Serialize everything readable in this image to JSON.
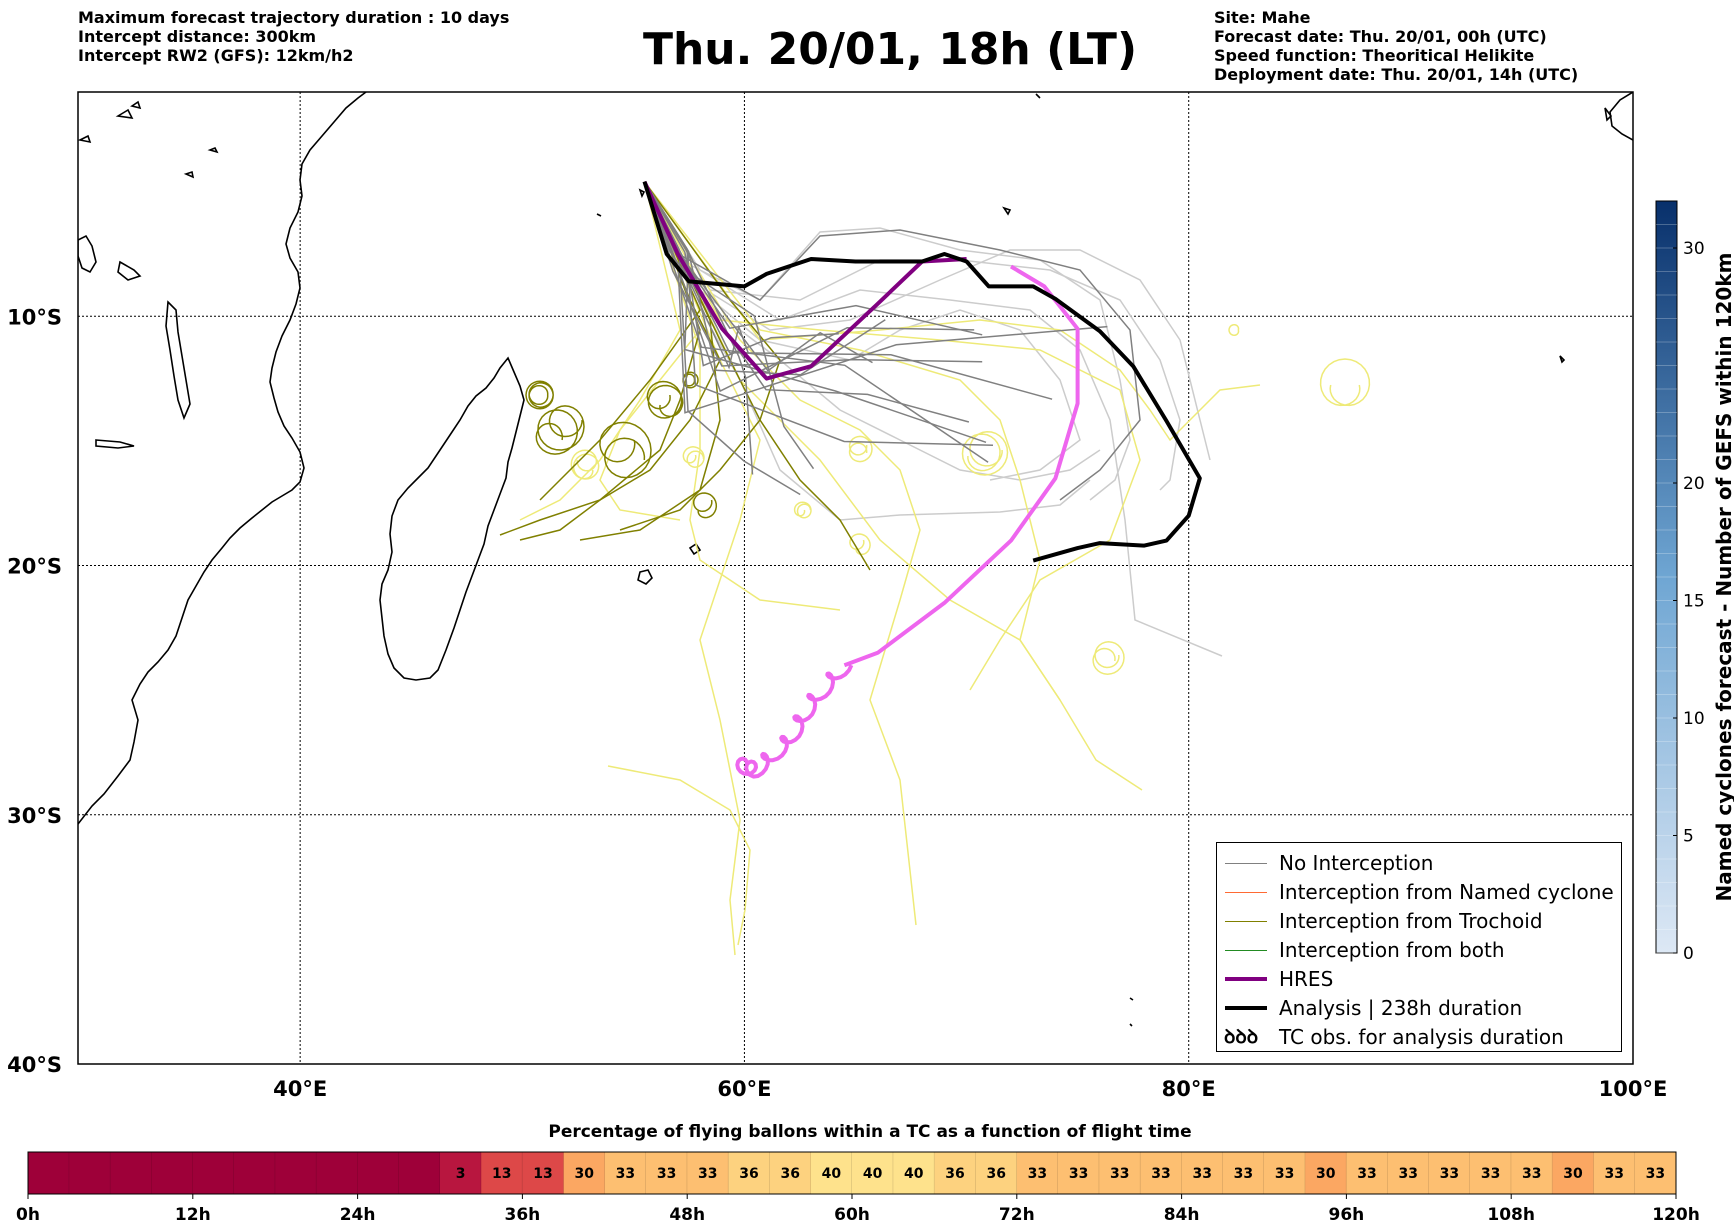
{
  "header": {
    "left_lines": [
      "Maximum forecast trajectory duration : 10 days",
      "Intercept distance: 300km",
      "Intercept RW2 (GFS):  12km/h2"
    ],
    "title": "Thu. 20/01, 18h (LT)",
    "right_lines": [
      "Site: Mahe",
      "Forecast date: Thu. 20/01, 00h (UTC)",
      "Speed function: Theoritical Helikite",
      "Deployment date: Thu. 20/01, 14h (UTC)"
    ]
  },
  "map": {
    "lon_ticks": [
      "40°E",
      "60°E",
      "80°E",
      "100°E"
    ],
    "lat_ticks": [
      "10°S",
      "20°S",
      "30°S",
      "40°S"
    ],
    "colors": {
      "no_interception": "#808080",
      "named_cyclone": "#ff6a33",
      "trochoid": "#808000",
      "both": "#228b22",
      "hres": "#800080",
      "hres_forecast": "#ee66ee",
      "analysis": "#000000",
      "ens_light": "#cccccc",
      "yellow": "#eeea78"
    }
  },
  "legend": {
    "items": [
      {
        "label": "No Interception",
        "color": "#808080",
        "width": 1.5,
        "symbol": ""
      },
      {
        "label": "Interception from Named cyclone",
        "color": "#ff6a33",
        "width": 1.5,
        "symbol": ""
      },
      {
        "label": "Interception from Trochoid",
        "color": "#808000",
        "width": 1.5,
        "symbol": ""
      },
      {
        "label": "Interception from both",
        "color": "#228b22",
        "width": 1.5,
        "symbol": ""
      },
      {
        "label": "HRES",
        "color": "#800080",
        "width": 4,
        "symbol": ""
      },
      {
        "label": "Analysis | 238h duration",
        "color": "#000000",
        "width": 4,
        "symbol": ""
      },
      {
        "label": "TC obs. for analysis duration",
        "color": "#000000",
        "width": 0,
        "symbol": "ꝺꝺꝺ"
      }
    ]
  },
  "colorbar": {
    "label": "Named cyclones forecast - Number of GEFS within 120km",
    "ticks": [
      "0",
      "5",
      "10",
      "15",
      "20",
      "30"
    ],
    "range": [
      0,
      32
    ]
  },
  "bottom_bar": {
    "title": "Percentage of flying ballons within a TC as a function of flight time",
    "tick_labels": [
      "0h",
      "12h",
      "24h",
      "36h",
      "48h",
      "60h",
      "72h",
      "84h",
      "96h",
      "108h",
      "120h"
    ],
    "cells": [
      null,
      null,
      null,
      null,
      null,
      null,
      null,
      null,
      null,
      null,
      3,
      13,
      13,
      30,
      33,
      33,
      33,
      36,
      36,
      40,
      40,
      40,
      36,
      36,
      33,
      33,
      33,
      33,
      33,
      33,
      33,
      30,
      33,
      33,
      33,
      33,
      33,
      30,
      33,
      33
    ],
    "colors": {
      "none": "#9e0039",
      "3": "#b8163f",
      "13": "#dd4848",
      "30": "#fba762",
      "33": "#fdbf71",
      "36": "#fdd27f",
      "40": "#fee28c"
    }
  },
  "chart_data": {
    "type": "map-trajectories",
    "region": {
      "lon_range": [
        30,
        100
      ],
      "lat_range": [
        -40,
        -1
      ]
    },
    "lon_ticks": [
      40,
      60,
      80,
      100
    ],
    "lat_ticks": [
      -10,
      -20,
      -30,
      -40
    ],
    "grid": true,
    "launch_site": {
      "name": "Mahe",
      "lon": 55.5,
      "lat": -4.6
    },
    "analysis": [
      [
        55.5,
        -4.6
      ],
      [
        56.5,
        -7.5
      ],
      [
        57.5,
        -8.6
      ],
      [
        60,
        -8.8
      ],
      [
        61,
        -8.3
      ],
      [
        63,
        -7.7
      ],
      [
        65,
        -7.8
      ],
      [
        68,
        -7.8
      ],
      [
        69,
        -7.5
      ],
      [
        70,
        -7.8
      ],
      [
        71,
        -8.8
      ],
      [
        73,
        -8.8
      ],
      [
        74,
        -9.3
      ],
      [
        76,
        -10.6
      ],
      [
        77.5,
        -12
      ],
      [
        79,
        -14.2
      ],
      [
        80.5,
        -16.5
      ],
      [
        80,
        -18
      ],
      [
        79,
        -19
      ],
      [
        78,
        -19.2
      ],
      [
        76,
        -19.1
      ],
      [
        75,
        -19.3
      ],
      [
        73,
        -19.8
      ]
    ],
    "hres": [
      [
        55.5,
        -4.6
      ],
      [
        57,
        -7.5
      ],
      [
        59,
        -10.5
      ],
      [
        61,
        -12.5
      ],
      [
        63,
        -12
      ],
      [
        66,
        -9.5
      ],
      [
        68,
        -7.8
      ],
      [
        70,
        -7.7
      ],
      [
        72,
        -8
      ],
      [
        73.5,
        -8.8
      ],
      [
        75,
        -10.5
      ],
      [
        75,
        -13.5
      ],
      [
        74,
        -16.5
      ],
      [
        72,
        -19
      ],
      [
        69,
        -21.5
      ],
      [
        66,
        -23.5
      ],
      [
        64.5,
        -24
      ]
    ],
    "tc_obs_track": [
      [
        64.5,
        -24
      ],
      [
        63,
        -25.5
      ],
      [
        62,
        -27
      ],
      [
        60.5,
        -28.2
      ],
      [
        59.8,
        -28
      ]
    ],
    "hres_forecast": [
      [
        72,
        -8
      ],
      [
        73.5,
        -8.8
      ],
      [
        75,
        -10.5
      ],
      [
        75,
        -13.5
      ],
      [
        74,
        -16.5
      ],
      [
        72,
        -19
      ],
      [
        69,
        -21.5
      ],
      [
        66,
        -23.5
      ],
      [
        64.5,
        -24
      ]
    ],
    "bottom_bar": {
      "x_hours": [
        0,
        120
      ],
      "step_hours": 3
    }
  }
}
